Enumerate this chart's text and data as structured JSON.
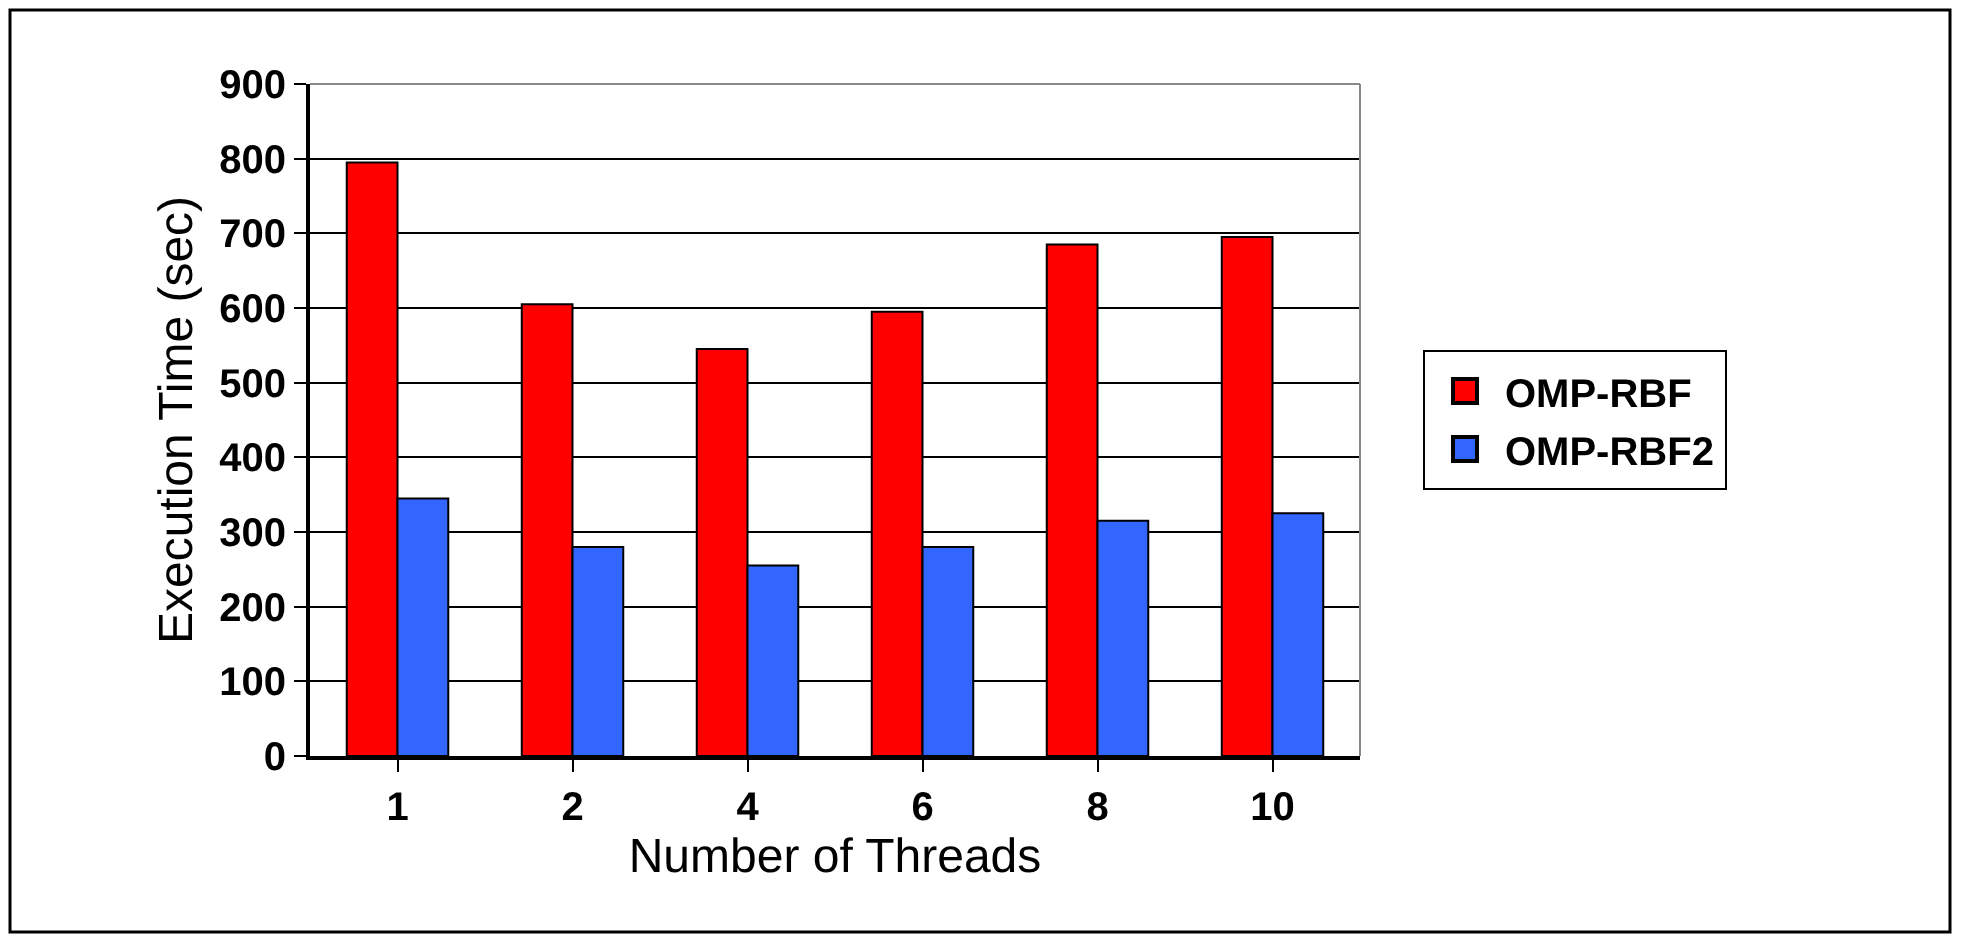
{
  "chart_data": {
    "type": "bar",
    "xlabel": "Number of Threads",
    "ylabel": "Execution Time (sec)",
    "categories": [
      "1",
      "2",
      "4",
      "6",
      "8",
      "10"
    ],
    "series": [
      {
        "name": "OMP-RBF",
        "color": "#ff0000",
        "values": [
          795,
          605,
          545,
          595,
          685,
          695
        ]
      },
      {
        "name": "OMP-RBF2",
        "color": "#3366ff",
        "values": [
          345,
          280,
          255,
          280,
          315,
          325
        ]
      }
    ],
    "ylim": [
      0,
      900
    ],
    "yticks": [
      0,
      100,
      200,
      300,
      400,
      500,
      600,
      700,
      800,
      900
    ],
    "grid": "y",
    "legend": "right"
  }
}
